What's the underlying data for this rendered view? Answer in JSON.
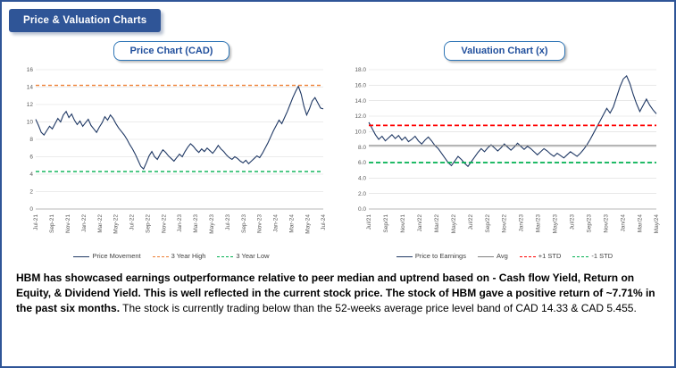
{
  "header": {
    "badge": "Price & Valuation Charts"
  },
  "chart_data": [
    {
      "type": "line",
      "title": "Price Chart (CAD)",
      "xlabel": "",
      "ylabel": "",
      "ylim": [
        0,
        16
      ],
      "yticks": [
        "0",
        "2",
        "4",
        "6",
        "8",
        "10",
        "12",
        "14",
        "16"
      ],
      "grid": true,
      "legend_position": "bottom",
      "categories": [
        "Jul-21",
        "Sep-21",
        "Nov-21",
        "Jan-22",
        "Mar-22",
        "May-22",
        "Jul-22",
        "Sep-22",
        "Nov-22",
        "Jan-23",
        "Mar-23",
        "May-23",
        "Jul-23",
        "Sep-23",
        "Nov-23",
        "Jan-24",
        "Mar-24",
        "May-24",
        "Jul-24"
      ],
      "series": [
        {
          "name": "Price Movement",
          "color": "#1F3864",
          "width": 1.1,
          "dash": "",
          "values": [
            10.3,
            9.6,
            8.8,
            8.5,
            9.0,
            9.5,
            9.2,
            9.8,
            10.4,
            10.0,
            10.8,
            11.2,
            10.5,
            10.9,
            10.2,
            9.7,
            10.1,
            9.5,
            9.9,
            10.3,
            9.6,
            9.2,
            8.8,
            9.4,
            9.9,
            10.6,
            10.2,
            10.8,
            10.4,
            9.8,
            9.3,
            8.9,
            8.5,
            8.0,
            7.4,
            6.9,
            6.3,
            5.6,
            4.9,
            4.6,
            5.3,
            6.1,
            6.6,
            6.0,
            5.7,
            6.3,
            6.8,
            6.5,
            6.1,
            5.8,
            5.5,
            5.9,
            6.3,
            6.0,
            6.6,
            7.1,
            7.5,
            7.2,
            6.8,
            6.5,
            6.9,
            6.6,
            7.0,
            6.7,
            6.4,
            6.8,
            7.3,
            6.9,
            6.6,
            6.2,
            5.9,
            5.7,
            6.0,
            5.8,
            5.5,
            5.3,
            5.6,
            5.2,
            5.5,
            5.8,
            6.1,
            5.9,
            6.4,
            7.0,
            7.6,
            8.3,
            9.0,
            9.6,
            10.2,
            9.8,
            10.5,
            11.2,
            12.0,
            12.8,
            13.5,
            14.1,
            13.2,
            11.8,
            10.8,
            11.5,
            12.4,
            12.8,
            12.2,
            11.6,
            11.5
          ]
        },
        {
          "name": "3 Year High",
          "color": "#ED7D31",
          "width": 1.3,
          "dash": "4 3",
          "values": [
            14.2,
            14.2
          ]
        },
        {
          "name": "3 Year Low",
          "color": "#00B050",
          "width": 1.3,
          "dash": "4 3",
          "values": [
            4.3,
            4.3
          ]
        }
      ]
    },
    {
      "type": "line",
      "title": "Valuation Chart (x)",
      "xlabel": "",
      "ylabel": "",
      "ylim": [
        0,
        18
      ],
      "yticks": [
        "0.0",
        "2.0",
        "4.0",
        "6.0",
        "8.0",
        "10.0",
        "12.0",
        "14.0",
        "16.0",
        "18.0"
      ],
      "grid": true,
      "legend_position": "bottom",
      "categories": [
        "Jul/21",
        "Sep/21",
        "Nov/21",
        "Jan/22",
        "Mar/22",
        "May/22",
        "Jul/22",
        "Sep/22",
        "Nov/22",
        "Jan/23",
        "Mar/23",
        "May/23",
        "Jul/23",
        "Sep/23",
        "Nov/23",
        "Jan/24",
        "Mar/24",
        "May/24"
      ],
      "series": [
        {
          "name": "Price to Earnings",
          "color": "#1F3864",
          "width": 1.1,
          "dash": "",
          "values": [
            11.2,
            10.4,
            9.6,
            9.0,
            9.4,
            8.8,
            9.2,
            9.6,
            9.1,
            9.5,
            8.9,
            9.3,
            8.7,
            9.0,
            9.4,
            8.8,
            8.4,
            8.9,
            9.3,
            8.8,
            8.2,
            7.8,
            7.2,
            6.6,
            6.0,
            5.6,
            6.2,
            6.8,
            6.4,
            5.9,
            5.5,
            6.1,
            6.7,
            7.3,
            7.8,
            7.4,
            7.9,
            8.3,
            7.9,
            7.5,
            7.9,
            8.4,
            8.0,
            7.6,
            8.0,
            8.5,
            8.1,
            7.7,
            8.1,
            7.8,
            7.4,
            7.0,
            7.4,
            7.8,
            7.5,
            7.1,
            6.8,
            7.2,
            6.9,
            6.6,
            7.0,
            7.4,
            7.1,
            6.8,
            7.2,
            7.7,
            8.3,
            9.0,
            9.8,
            10.6,
            11.4,
            12.2,
            13.0,
            12.4,
            13.2,
            14.5,
            15.8,
            16.8,
            17.2,
            16.2,
            14.8,
            13.6,
            12.6,
            13.4,
            14.2,
            13.4,
            12.8,
            12.3
          ]
        },
        {
          "name": "Avg",
          "color": "#7F7F7F",
          "width": 1.2,
          "dash": "",
          "values": [
            8.2,
            8.2
          ]
        },
        {
          "name": "+1 STD",
          "color": "#FF0000",
          "width": 1.7,
          "dash": "5 3",
          "values": [
            10.8,
            10.8
          ]
        },
        {
          "name": "-1 STD",
          "color": "#00B050",
          "width": 1.7,
          "dash": "5 3",
          "values": [
            6.0,
            6.0
          ]
        }
      ]
    }
  ],
  "commentary": {
    "bold": "HBM has showcased earnings outperformance relative to peer median and uptrend based on - Cash flow Yield, Return on Equity,  & Dividend Yield. This is well reflected in the current stock price. The stock of HBM gave a positive return of ~7.71% in the past six months.",
    "regular": " The stock is currently trading  below than the 52-weeks average price level band of CAD 14.33 & CAD 5.455."
  },
  "colors": {
    "border_blue": "#2F5597",
    "title_blue": "#1F4E9C",
    "series_navy": "#1F3864",
    "high_orange": "#ED7D31",
    "low_green": "#00B050",
    "avg_gray": "#7F7F7F",
    "std_red": "#FF0000"
  }
}
